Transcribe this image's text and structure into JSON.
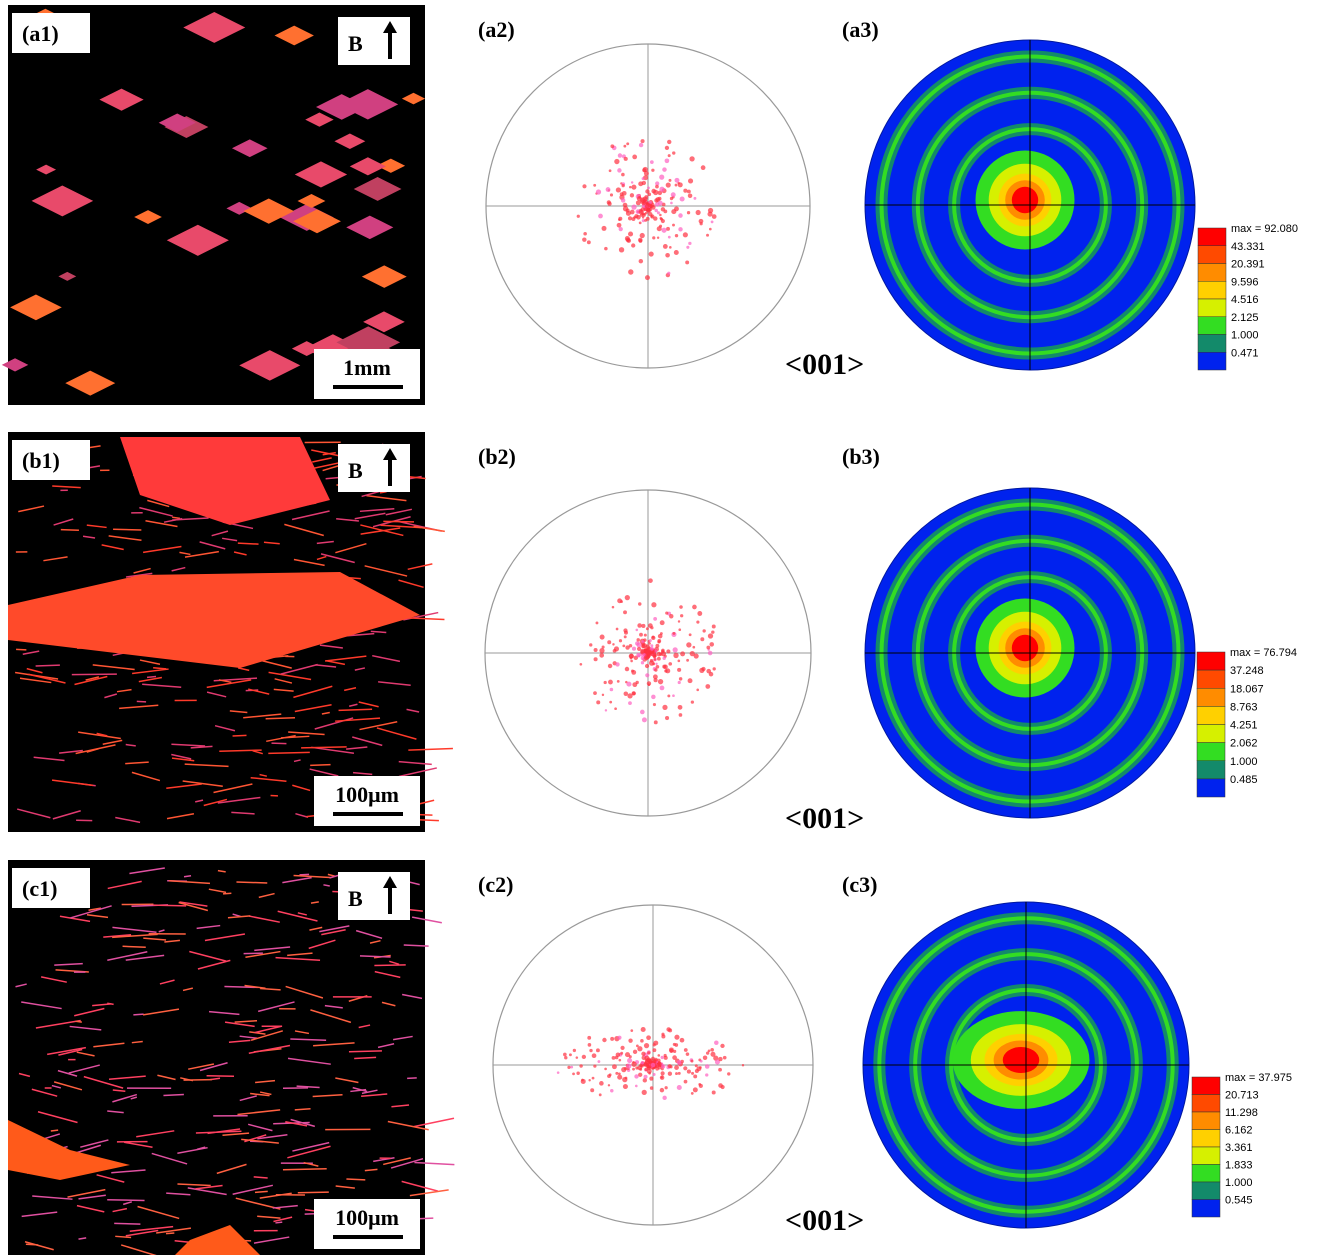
{
  "rows": [
    {
      "map": {
        "label": "(a1)",
        "direction": "B",
        "scale": "1mm"
      },
      "pole": {
        "label": "(a2)",
        "direction": "<001>"
      },
      "contour": {
        "label": "(a3)",
        "legend": [
          "max = 92.080",
          "43.331",
          "20.391",
          "9.596",
          "4.516",
          "2.125",
          "1.000",
          "0.471"
        ]
      }
    },
    {
      "map": {
        "label": "(b1)",
        "direction": "B",
        "scale": "100μm"
      },
      "pole": {
        "label": "(b2)",
        "direction": "<001>"
      },
      "contour": {
        "label": "(b3)",
        "legend": [
          "max = 76.794",
          "37.248",
          "18.067",
          "8.763",
          "4.251",
          "2.062",
          "1.000",
          "0.485"
        ]
      }
    },
    {
      "map": {
        "label": "(c1)",
        "direction": "B",
        "scale": "100μm"
      },
      "pole": {
        "label": "(c2)",
        "direction": "<001>"
      },
      "contour": {
        "label": "(c3)",
        "legend": [
          "max = 37.975",
          "20.713",
          "11.298",
          "6.162",
          "3.361",
          "1.833",
          "1.000",
          "0.545"
        ]
      }
    }
  ]
}
